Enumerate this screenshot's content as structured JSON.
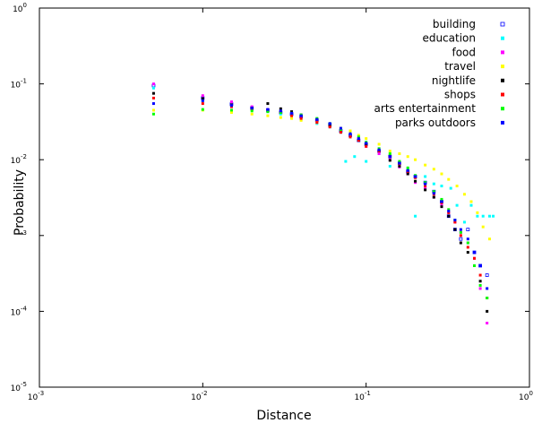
{
  "chart_data": {
    "type": "scatter",
    "title": "",
    "xlabel": "Distance",
    "ylabel": "Probability",
    "xscale": "log",
    "yscale": "log",
    "xlim": [
      0.001,
      1
    ],
    "ylim": [
      1e-05,
      1
    ],
    "grid": false,
    "legend_position": "top-right",
    "x_ticks": [
      {
        "base": "10",
        "exp": "-3"
      },
      {
        "base": "10",
        "exp": "-2"
      },
      {
        "base": "10",
        "exp": "-1"
      },
      {
        "base": "10",
        "exp": "0"
      }
    ],
    "y_ticks": [
      {
        "base": "10",
        "exp": "-5"
      },
      {
        "base": "10",
        "exp": "-4"
      },
      {
        "base": "",
        "exp": "-3"
      },
      {
        "base": "10",
        "exp": "-2"
      },
      {
        "base": "10",
        "exp": "-1"
      },
      {
        "base": "10",
        "exp": "0"
      }
    ],
    "series": [
      {
        "name": "building",
        "color": "#0000ff",
        "marker": "hollow-square",
        "points": [
          [
            0.005,
            0.095
          ],
          [
            0.01,
            0.065
          ],
          [
            0.015,
            0.054
          ],
          [
            0.02,
            0.048
          ],
          [
            0.025,
            0.045
          ],
          [
            0.03,
            0.042
          ],
          [
            0.035,
            0.04
          ],
          [
            0.04,
            0.037
          ],
          [
            0.05,
            0.033
          ],
          [
            0.06,
            0.029
          ],
          [
            0.07,
            0.024
          ],
          [
            0.08,
            0.021
          ],
          [
            0.09,
            0.018
          ],
          [
            0.1,
            0.016
          ],
          [
            0.12,
            0.013
          ],
          [
            0.14,
            0.011
          ],
          [
            0.16,
            0.009
          ],
          [
            0.18,
            0.007
          ],
          [
            0.2,
            0.006
          ],
          [
            0.23,
            0.005
          ],
          [
            0.26,
            0.0038
          ],
          [
            0.29,
            0.0028
          ],
          [
            0.32,
            0.0018
          ],
          [
            0.35,
            0.0012
          ],
          [
            0.38,
            0.0009
          ],
          [
            0.42,
            0.0012
          ],
          [
            0.46,
            0.0006
          ],
          [
            0.5,
            0.0004
          ],
          [
            0.55,
            0.0003
          ]
        ]
      },
      {
        "name": "education",
        "color": "#00ffff",
        "marker": "square",
        "points": [
          [
            0.005,
            0.088
          ],
          [
            0.01,
            0.06
          ],
          [
            0.015,
            0.052
          ],
          [
            0.02,
            0.046
          ],
          [
            0.025,
            0.043
          ],
          [
            0.03,
            0.04
          ],
          [
            0.04,
            0.034
          ],
          [
            0.05,
            0.03
          ],
          [
            0.06,
            0.027
          ],
          [
            0.07,
            0.023
          ],
          [
            0.075,
            0.0095
          ],
          [
            0.085,
            0.011
          ],
          [
            0.1,
            0.0095
          ],
          [
            0.12,
            0.012
          ],
          [
            0.14,
            0.0082
          ],
          [
            0.16,
            0.0085
          ],
          [
            0.18,
            0.0075
          ],
          [
            0.2,
            0.0018
          ],
          [
            0.23,
            0.006
          ],
          [
            0.26,
            0.0048
          ],
          [
            0.29,
            0.0045
          ],
          [
            0.33,
            0.0042
          ],
          [
            0.36,
            0.0025
          ],
          [
            0.4,
            0.0015
          ],
          [
            0.44,
            0.0025
          ],
          [
            0.48,
            0.0018
          ],
          [
            0.52,
            0.0018
          ],
          [
            0.57,
            0.0018
          ],
          [
            0.6,
            0.0018
          ]
        ]
      },
      {
        "name": "food",
        "color": "#ff00ff",
        "marker": "square",
        "points": [
          [
            0.005,
            0.1
          ],
          [
            0.01,
            0.07
          ],
          [
            0.015,
            0.058
          ],
          [
            0.02,
            0.05
          ],
          [
            0.025,
            0.046
          ],
          [
            0.03,
            0.042
          ],
          [
            0.035,
            0.04
          ],
          [
            0.04,
            0.037
          ],
          [
            0.05,
            0.033
          ],
          [
            0.06,
            0.028
          ],
          [
            0.07,
            0.025
          ],
          [
            0.08,
            0.022
          ],
          [
            0.09,
            0.019
          ],
          [
            0.1,
            0.015
          ],
          [
            0.12,
            0.012
          ],
          [
            0.14,
            0.01
          ],
          [
            0.16,
            0.008
          ],
          [
            0.18,
            0.0065
          ],
          [
            0.2,
            0.005
          ],
          [
            0.23,
            0.0042
          ],
          [
            0.26,
            0.0032
          ],
          [
            0.29,
            0.0025
          ],
          [
            0.32,
            0.002
          ],
          [
            0.35,
            0.0015
          ],
          [
            0.38,
            0.0011
          ],
          [
            0.42,
            0.0008
          ],
          [
            0.46,
            0.0005
          ],
          [
            0.5,
            0.0002
          ],
          [
            0.55,
            7e-05
          ]
        ]
      },
      {
        "name": "travel",
        "color": "#ffff00",
        "marker": "square",
        "points": [
          [
            0.005,
            0.045
          ],
          [
            0.01,
            0.045
          ],
          [
            0.015,
            0.042
          ],
          [
            0.02,
            0.04
          ],
          [
            0.025,
            0.038
          ],
          [
            0.03,
            0.036
          ],
          [
            0.035,
            0.035
          ],
          [
            0.04,
            0.033
          ],
          [
            0.05,
            0.031
          ],
          [
            0.06,
            0.028
          ],
          [
            0.07,
            0.026
          ],
          [
            0.08,
            0.024
          ],
          [
            0.09,
            0.021
          ],
          [
            0.1,
            0.019
          ],
          [
            0.12,
            0.016
          ],
          [
            0.14,
            0.013
          ],
          [
            0.16,
            0.012
          ],
          [
            0.18,
            0.011
          ],
          [
            0.2,
            0.01
          ],
          [
            0.23,
            0.0085
          ],
          [
            0.26,
            0.0075
          ],
          [
            0.29,
            0.0065
          ],
          [
            0.32,
            0.0055
          ],
          [
            0.36,
            0.0045
          ],
          [
            0.4,
            0.0035
          ],
          [
            0.44,
            0.0028
          ],
          [
            0.48,
            0.002
          ],
          [
            0.52,
            0.0013
          ],
          [
            0.57,
            0.0009
          ]
        ]
      },
      {
        "name": "nightlife",
        "color": "#000000",
        "marker": "square",
        "points": [
          [
            0.005,
            0.075
          ],
          [
            0.01,
            0.064
          ],
          [
            0.015,
            0.053
          ],
          [
            0.02,
            0.048
          ],
          [
            0.025,
            0.055
          ],
          [
            0.03,
            0.047
          ],
          [
            0.035,
            0.043
          ],
          [
            0.04,
            0.039
          ],
          [
            0.05,
            0.034
          ],
          [
            0.06,
            0.028
          ],
          [
            0.07,
            0.023
          ],
          [
            0.08,
            0.02
          ],
          [
            0.09,
            0.018
          ],
          [
            0.1,
            0.016
          ],
          [
            0.12,
            0.013
          ],
          [
            0.14,
            0.0098
          ],
          [
            0.16,
            0.0082
          ],
          [
            0.18,
            0.0065
          ],
          [
            0.2,
            0.0052
          ],
          [
            0.23,
            0.004
          ],
          [
            0.26,
            0.0032
          ],
          [
            0.29,
            0.0024
          ],
          [
            0.32,
            0.0018
          ],
          [
            0.35,
            0.0012
          ],
          [
            0.38,
            0.0008
          ],
          [
            0.42,
            0.0006
          ],
          [
            0.46,
            0.0004
          ],
          [
            0.5,
            0.00025
          ],
          [
            0.55,
            0.0001
          ]
        ]
      },
      {
        "name": "shops",
        "color": "#ff0000",
        "marker": "square",
        "points": [
          [
            0.005,
            0.065
          ],
          [
            0.01,
            0.055
          ],
          [
            0.015,
            0.05
          ],
          [
            0.02,
            0.046
          ],
          [
            0.025,
            0.044
          ],
          [
            0.03,
            0.042
          ],
          [
            0.035,
            0.038
          ],
          [
            0.04,
            0.035
          ],
          [
            0.05,
            0.031
          ],
          [
            0.06,
            0.027
          ],
          [
            0.07,
            0.023
          ],
          [
            0.08,
            0.02
          ],
          [
            0.09,
            0.018
          ],
          [
            0.1,
            0.015
          ],
          [
            0.12,
            0.013
          ],
          [
            0.14,
            0.011
          ],
          [
            0.16,
            0.0088
          ],
          [
            0.18,
            0.007
          ],
          [
            0.2,
            0.0058
          ],
          [
            0.23,
            0.0045
          ],
          [
            0.26,
            0.0035
          ],
          [
            0.29,
            0.0027
          ],
          [
            0.32,
            0.002
          ],
          [
            0.35,
            0.0015
          ],
          [
            0.38,
            0.001
          ],
          [
            0.42,
            0.0007
          ],
          [
            0.46,
            0.0005
          ],
          [
            0.5,
            0.0003
          ],
          [
            0.55,
            0.00015
          ]
        ]
      },
      {
        "name": "arts entertainment",
        "color": "#00ff00",
        "marker": "square",
        "points": [
          [
            0.005,
            0.04
          ],
          [
            0.01,
            0.046
          ],
          [
            0.015,
            0.045
          ],
          [
            0.02,
            0.044
          ],
          [
            0.025,
            0.043
          ],
          [
            0.03,
            0.042
          ],
          [
            0.035,
            0.041
          ],
          [
            0.04,
            0.039
          ],
          [
            0.05,
            0.035
          ],
          [
            0.06,
            0.03
          ],
          [
            0.07,
            0.025
          ],
          [
            0.08,
            0.022
          ],
          [
            0.09,
            0.02
          ],
          [
            0.1,
            0.017
          ],
          [
            0.12,
            0.014
          ],
          [
            0.14,
            0.012
          ],
          [
            0.16,
            0.0095
          ],
          [
            0.18,
            0.0078
          ],
          [
            0.2,
            0.0062
          ],
          [
            0.23,
            0.005
          ],
          [
            0.26,
            0.0038
          ],
          [
            0.29,
            0.003
          ],
          [
            0.32,
            0.0022
          ],
          [
            0.35,
            0.0016
          ],
          [
            0.38,
            0.0011
          ],
          [
            0.42,
            0.0008
          ],
          [
            0.46,
            0.0004
          ],
          [
            0.5,
            0.00022
          ],
          [
            0.55,
            0.00015
          ]
        ]
      },
      {
        "name": "parks outdoors",
        "color": "#0000ff",
        "marker": "square",
        "points": [
          [
            0.005,
            0.055
          ],
          [
            0.01,
            0.06
          ],
          [
            0.015,
            0.052
          ],
          [
            0.02,
            0.048
          ],
          [
            0.025,
            0.046
          ],
          [
            0.03,
            0.044
          ],
          [
            0.035,
            0.041
          ],
          [
            0.04,
            0.038
          ],
          [
            0.05,
            0.034
          ],
          [
            0.06,
            0.03
          ],
          [
            0.07,
            0.026
          ],
          [
            0.08,
            0.022
          ],
          [
            0.09,
            0.019
          ],
          [
            0.1,
            0.0165
          ],
          [
            0.12,
            0.0135
          ],
          [
            0.14,
            0.011
          ],
          [
            0.16,
            0.009
          ],
          [
            0.18,
            0.0072
          ],
          [
            0.2,
            0.006
          ],
          [
            0.23,
            0.0048
          ],
          [
            0.26,
            0.0036
          ],
          [
            0.29,
            0.0028
          ],
          [
            0.32,
            0.0021
          ],
          [
            0.35,
            0.0016
          ],
          [
            0.38,
            0.0012
          ],
          [
            0.42,
            0.0009
          ],
          [
            0.46,
            0.0006
          ],
          [
            0.5,
            0.0004
          ],
          [
            0.55,
            0.0002
          ]
        ]
      }
    ]
  }
}
